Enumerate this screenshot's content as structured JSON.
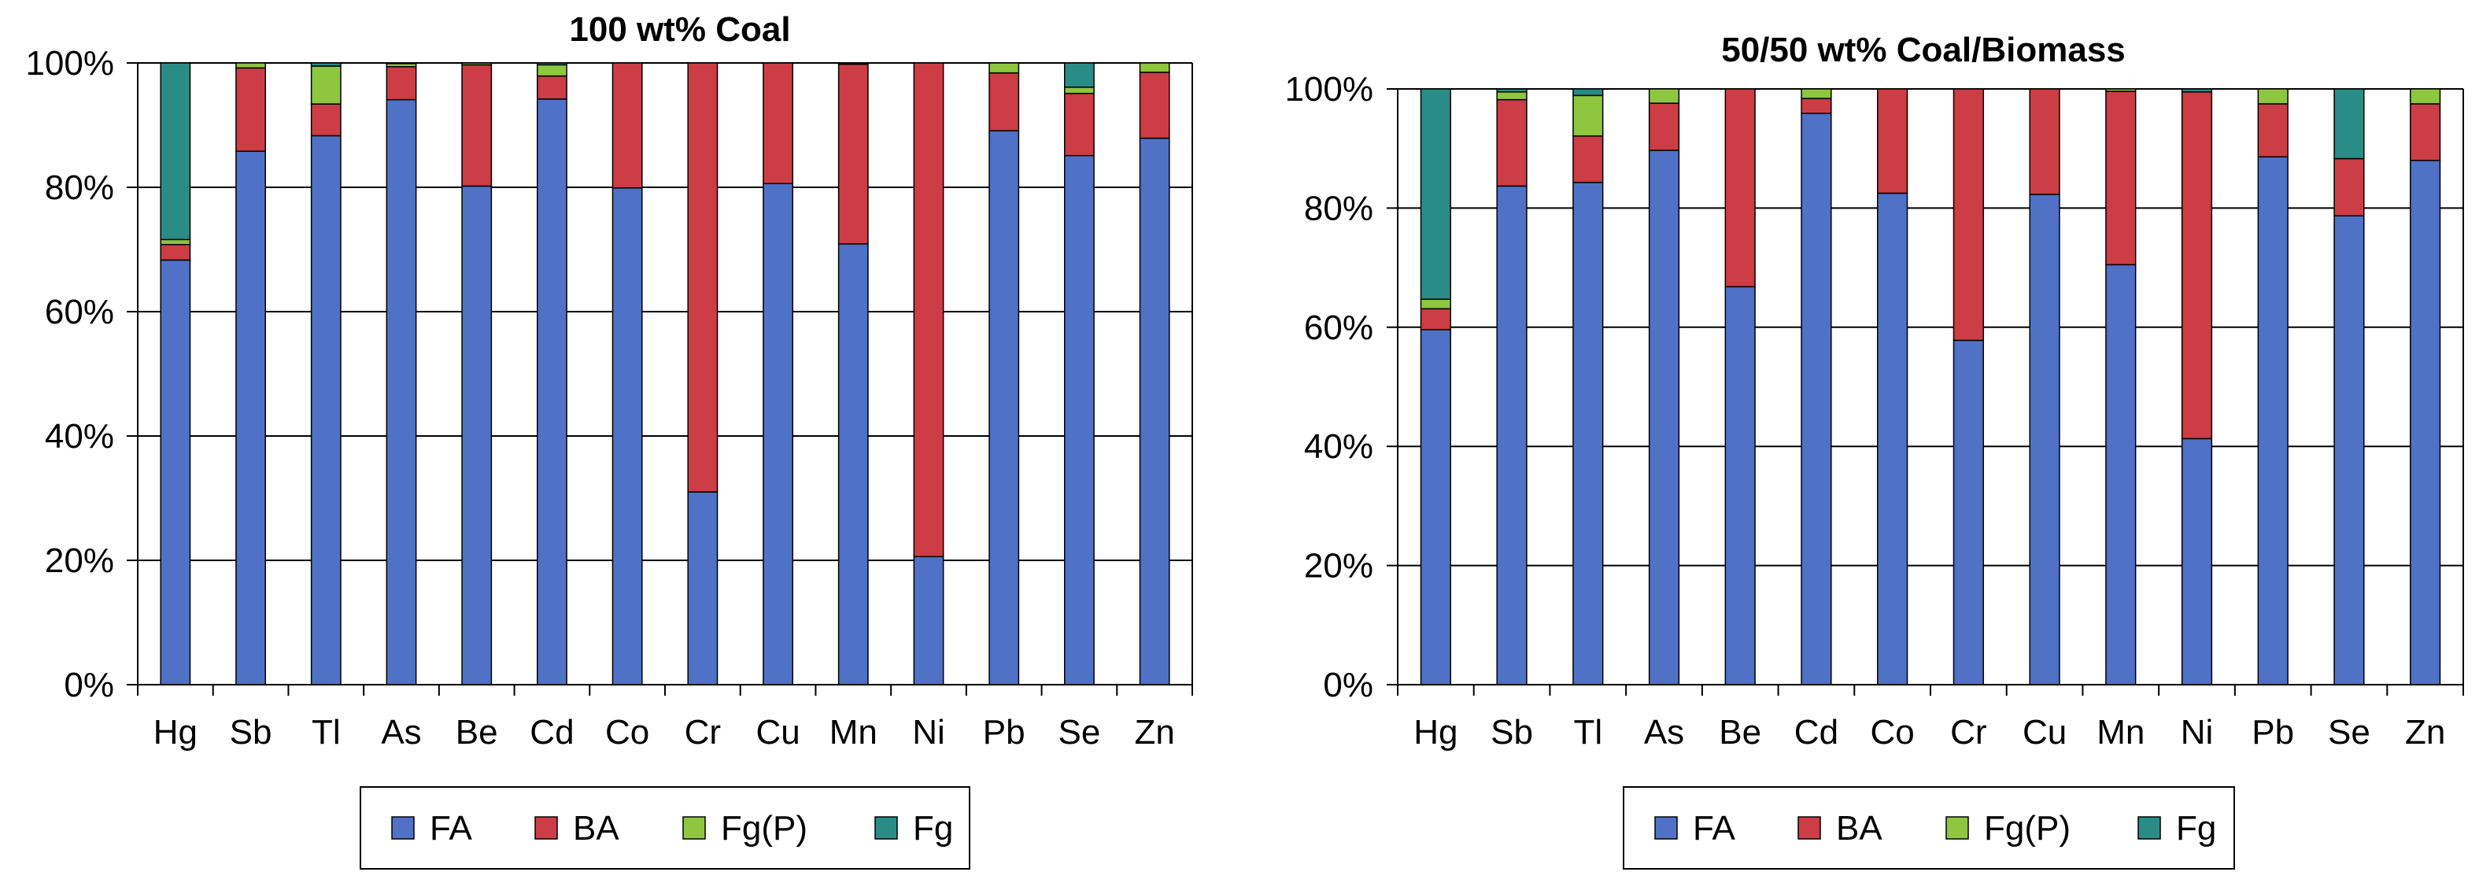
{
  "colors": {
    "FA": "#4f71c6",
    "BA": "#cc3d45",
    "Fg(P)": "#8ec63f",
    "Fg": "#2a8c86"
  },
  "chart_data": [
    {
      "type": "bar",
      "stacked": true,
      "title": "100 wt% Coal",
      "categories": [
        "Hg",
        "Sb",
        "Tl",
        "As",
        "Be",
        "Cd",
        "Co",
        "Cr",
        "Cu",
        "Mn",
        "Ni",
        "Pb",
        "Se",
        "Zn"
      ],
      "ylim": [
        0,
        100
      ],
      "y_ticks": [
        "0%",
        "20%",
        "40%",
        "60%",
        "80%",
        "100%"
      ],
      "series": [
        {
          "name": "FA",
          "values": [
            68.3,
            85.8,
            88.3,
            94.1,
            80.2,
            94.2,
            79.9,
            31.0,
            80.6,
            70.9,
            20.6,
            89.1,
            85.1,
            87.9
          ]
        },
        {
          "name": "BA",
          "values": [
            2.5,
            13.4,
            5.1,
            5.3,
            19.5,
            3.7,
            20.1,
            69.0,
            19.4,
            28.9,
            79.4,
            9.3,
            10.0,
            10.6
          ]
        },
        {
          "name": "Fg(P)",
          "values": [
            0.8,
            0.8,
            6.1,
            0.5,
            0.3,
            1.8,
            0.0,
            0.0,
            0.0,
            0.2,
            0.0,
            1.6,
            1.0,
            1.5
          ]
        },
        {
          "name": "Fg",
          "values": [
            28.4,
            0.0,
            0.5,
            0.1,
            0.0,
            0.3,
            0.0,
            0.0,
            0.0,
            0.0,
            0.0,
            0.0,
            3.9,
            0.0
          ]
        }
      ],
      "legend": [
        "FA",
        "BA",
        "Fg(P)",
        "Fg"
      ]
    },
    {
      "type": "bar",
      "stacked": true,
      "title": "50/50 wt% Coal/Biomass",
      "categories": [
        "Hg",
        "Sb",
        "Tl",
        "As",
        "Be",
        "Cd",
        "Co",
        "Cr",
        "Cu",
        "Mn",
        "Ni",
        "Pb",
        "Se",
        "Zn"
      ],
      "ylim": [
        0,
        100
      ],
      "y_ticks": [
        "0%",
        "20%",
        "40%",
        "60%",
        "80%",
        "100%"
      ],
      "series": [
        {
          "name": "FA",
          "values": [
            59.6,
            83.7,
            84.3,
            89.7,
            66.8,
            95.9,
            82.5,
            57.8,
            82.3,
            70.5,
            41.3,
            88.6,
            78.7,
            88.0
          ]
        },
        {
          "name": "BA",
          "values": [
            3.5,
            14.5,
            7.8,
            7.9,
            33.2,
            2.5,
            17.5,
            42.2,
            17.7,
            29.1,
            58.2,
            8.9,
            9.6,
            9.5
          ]
        },
        {
          "name": "Fg(P)",
          "values": [
            1.6,
            1.3,
            6.8,
            2.4,
            0.0,
            1.6,
            0.0,
            0.0,
            0.0,
            0.4,
            0.0,
            2.5,
            0.0,
            2.5
          ]
        },
        {
          "name": "Fg",
          "values": [
            35.3,
            0.5,
            1.1,
            0.0,
            0.0,
            0.0,
            0.0,
            0.0,
            0.0,
            0.0,
            0.5,
            0.0,
            11.7,
            0.0
          ]
        }
      ],
      "legend": [
        "FA",
        "BA",
        "Fg(P)",
        "Fg"
      ]
    }
  ]
}
